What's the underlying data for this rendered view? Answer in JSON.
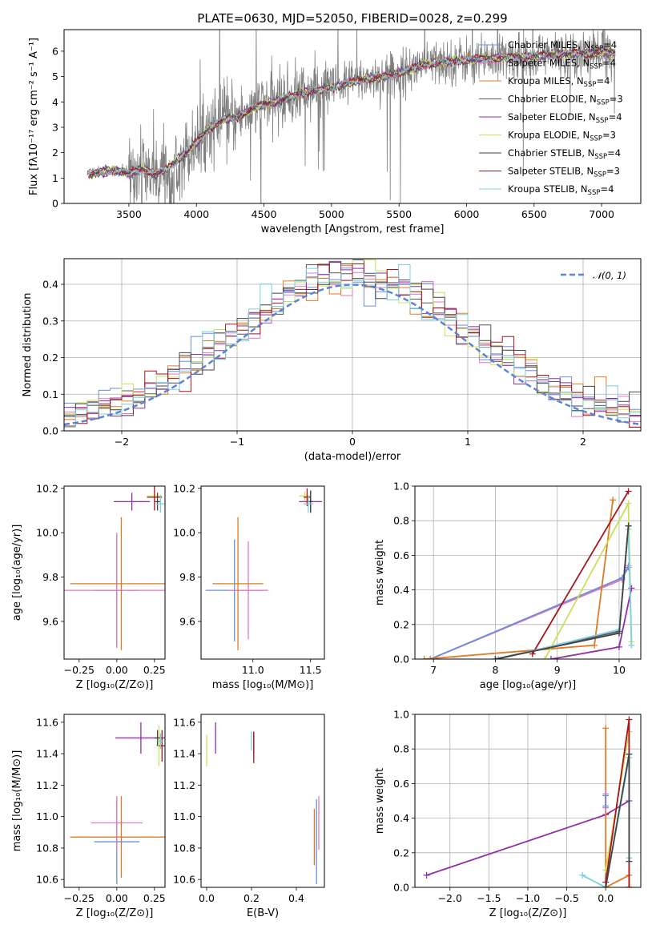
{
  "figure": {
    "title": "PLATE=0630, MJD=52050, FIBERID=0028, z=0.299"
  },
  "colors": {
    "data": "#808080",
    "Chabrier MILES": "#6b8fdc",
    "Salpeter MILES": "#e377c2",
    "Kroupa MILES": "#e07b24",
    "Chabrier ELODIE": "#555555",
    "Salpeter ELODIE": "#8f2ea8",
    "Kroupa ELODIE": "#c8e05a",
    "Chabrier STELIB": "#444444",
    "Salpeter STELIB": "#a8141c",
    "Kroupa STELIB": "#7ccfe0",
    "gauss": "#5b84d6"
  },
  "chart_data": [
    {
      "id": "spectrum",
      "type": "line",
      "title": "PLATE=0630, MJD=52050, FIBERID=0028, z=0.299",
      "xlabel": "wavelength [Angstrom, rest frame]",
      "ylabel": "Flux [fλ10⁻¹⁷ erg cm⁻² s⁻¹ A⁻¹]",
      "xlim": [
        3020,
        7290
      ],
      "ylim": [
        0,
        6.85
      ],
      "xticks": [
        3500,
        4000,
        4500,
        5000,
        5500,
        6000,
        6500,
        7000
      ],
      "yticks": [
        0,
        1,
        2,
        3,
        4,
        5,
        6
      ],
      "legend_position": "right",
      "legend": [
        {
          "name": "Chabrier MILES",
          "nssp": "4"
        },
        {
          "name": "Salpeter MILES",
          "nssp": "4"
        },
        {
          "name": "Kroupa MILES",
          "nssp": "4"
        },
        {
          "name": "Chabrier ELODIE",
          "nssp": "3"
        },
        {
          "name": "Salpeter ELODIE",
          "nssp": "4"
        },
        {
          "name": "Kroupa ELODIE",
          "nssp": "3"
        },
        {
          "name": "Chabrier STELIB",
          "nssp": "4"
        },
        {
          "name": "Salpeter STELIB",
          "nssp": "3"
        },
        {
          "name": "Kroupa STELIB",
          "nssp": "4"
        }
      ],
      "continuum": {
        "x": [
          3200,
          3300,
          3400,
          3500,
          3600,
          3700,
          3800,
          3900,
          4000,
          4100,
          4200,
          4300,
          4400,
          4500,
          4600,
          4700,
          4800,
          4900,
          5000,
          5100,
          5200,
          5300,
          5400,
          5500,
          5600,
          5700,
          5800,
          5900,
          6000,
          6100,
          6200,
          6300,
          6400,
          6500,
          6600,
          6700,
          6800,
          6900,
          7000,
          7100
        ],
        "y": [
          1.15,
          1.25,
          1.3,
          1.2,
          1.35,
          1.15,
          1.45,
          1.9,
          2.4,
          3.0,
          3.3,
          3.4,
          3.7,
          3.9,
          4.05,
          4.2,
          4.4,
          4.45,
          4.55,
          4.7,
          4.85,
          4.95,
          5.0,
          5.15,
          5.3,
          5.5,
          5.55,
          5.6,
          5.65,
          5.7,
          5.72,
          5.75,
          5.78,
          5.8,
          5.85,
          5.88,
          5.9,
          5.92,
          5.95,
          5.97
        ]
      }
    },
    {
      "id": "residuals",
      "type": "bar",
      "xlabel": "(data-model)/error",
      "ylabel": "Normed distribution",
      "xlim": [
        -2.5,
        2.5
      ],
      "ylim": [
        0,
        0.47
      ],
      "xticks": [
        -2,
        -1,
        0,
        1,
        2
      ],
      "yticks": [
        0.0,
        0.1,
        0.2,
        0.3,
        0.4
      ],
      "grid": true,
      "legend": [
        {
          "name": "𝒩(0, 1)"
        }
      ],
      "legend_position": "top-right",
      "bins": [
        -2.5,
        2.5,
        50
      ]
    },
    {
      "id": "age-Z",
      "type": "scatter",
      "xlabel": "Z [log₁₀(Z/Z⊙)]",
      "ylabel": "age  [log₁₀(age/yr)]",
      "xlim": [
        -0.35,
        0.32
      ],
      "ylim": [
        9.43,
        10.21
      ],
      "xticks": [
        -0.25,
        0.0,
        0.25
      ],
      "yticks": [
        9.6,
        9.8,
        10.0,
        10.2
      ],
      "points": [
        {
          "model": "Chabrier MILES",
          "x": 0.0,
          "y": 9.74,
          "xerr": 0.15,
          "yerr": 0.25
        },
        {
          "model": "Salpeter MILES",
          "x": 0.0,
          "y": 9.74,
          "xerr": 0.36,
          "yerr": 0.26
        },
        {
          "model": "Kroupa MILES",
          "x": 0.03,
          "y": 9.77,
          "xerr": 0.34,
          "yerr": 0.3
        },
        {
          "model": "Salpeter ELODIE",
          "x": 0.1,
          "y": 10.14,
          "xerr": 0.12,
          "yerr": 0.04
        },
        {
          "model": "Kroupa ELODIE",
          "x": 0.25,
          "y": 10.165,
          "xerr": 0.05,
          "yerr": 0.02
        },
        {
          "model": "Chabrier STELIB",
          "x": 0.27,
          "y": 10.14,
          "xerr": 0.02,
          "yerr": 0.04
        },
        {
          "model": "Salpeter STELIB",
          "x": 0.25,
          "y": 10.16,
          "xerr": 0.05,
          "yerr": 0.06
        },
        {
          "model": "Kroupa STELIB",
          "x": 0.29,
          "y": 10.13,
          "xerr": 0.03,
          "yerr": 0.04
        }
      ]
    },
    {
      "id": "age-mass",
      "type": "scatter",
      "xlabel": "mass [log₁₀(M/M⊙)]",
      "ylabel": "",
      "xlim": [
        10.55,
        11.62
      ],
      "ylim": [
        9.43,
        10.21
      ],
      "xticks": [
        11.0,
        11.5
      ],
      "yticks": [
        9.6,
        9.8,
        10.0,
        10.2
      ],
      "points": [
        {
          "model": "Chabrier MILES",
          "x": 10.84,
          "y": 9.74,
          "xerr": 0.25,
          "yerr": 0.23
        },
        {
          "model": "Salpeter MILES",
          "x": 10.96,
          "y": 9.74,
          "xerr": 0.17,
          "yerr": 0.22
        },
        {
          "model": "Kroupa MILES",
          "x": 10.87,
          "y": 9.77,
          "xerr": 0.22,
          "yerr": 0.3
        },
        {
          "model": "Salpeter ELODIE",
          "x": 11.5,
          "y": 10.14,
          "xerr": 0.1,
          "yerr": 0.05
        },
        {
          "model": "Kroupa ELODIE",
          "x": 11.45,
          "y": 10.165,
          "xerr": 0.05,
          "yerr": 0.02
        },
        {
          "model": "Chabrier STELIB",
          "x": 11.5,
          "y": 10.14,
          "xerr": 0.02,
          "yerr": 0.05
        },
        {
          "model": "Salpeter STELIB",
          "x": 11.47,
          "y": 10.16,
          "xerr": 0.03,
          "yerr": 0.04
        },
        {
          "model": "Kroupa STELIB",
          "x": 11.48,
          "y": 10.13,
          "xerr": 0.04,
          "yerr": 0.04
        }
      ]
    },
    {
      "id": "weight-age",
      "type": "line",
      "xlabel": "age  [log₁₀(age/yr)]",
      "ylabel": "mass weight",
      "xlim": [
        6.7,
        10.35
      ],
      "ylim": [
        0,
        1
      ],
      "xticks": [
        7,
        8,
        9,
        10
      ],
      "yticks": [
        0.0,
        0.2,
        0.4,
        0.6,
        0.8,
        1.0
      ],
      "grid": true,
      "series": [
        {
          "model": "Salpeter MILES",
          "x": [
            6.95,
            10.05,
            10.15
          ],
          "y": [
            0.0,
            0.46,
            0.54
          ]
        },
        {
          "model": "Chabrier MILES",
          "x": [
            6.95,
            10.05,
            10.15
          ],
          "y": [
            0.0,
            0.47,
            0.53
          ]
        },
        {
          "model": "Kroupa MILES",
          "x": [
            6.85,
            9.6,
            9.9
          ],
          "y": [
            0.0,
            0.08,
            0.92
          ]
        },
        {
          "model": "Salpeter STELIB",
          "x": [
            8.6,
            10.15
          ],
          "y": [
            0.03,
            0.97
          ]
        },
        {
          "model": "Kroupa ELODIE",
          "x": [
            8.8,
            10.15,
            10.2
          ],
          "y": [
            0.0,
            0.9,
            0.1
          ]
        },
        {
          "model": "Salpeter ELODIE",
          "x": [
            8.9,
            10.0,
            10.2
          ],
          "y": [
            0.0,
            0.07,
            0.41
          ]
        },
        {
          "model": "Chabrier ELODIE",
          "x": [
            8.0,
            10.0,
            10.15
          ],
          "y": [
            0.0,
            0.16,
            0.77
          ]
        },
        {
          "model": "Kroupa STELIB",
          "x": [
            8.05,
            10.0,
            10.15,
            10.2
          ],
          "y": [
            0.0,
            0.17,
            0.75,
            0.08
          ]
        },
        {
          "model": "Chabrier STELIB",
          "x": [
            8.0,
            10.0,
            10.15
          ],
          "y": [
            0.0,
            0.15,
            0.77
          ]
        }
      ]
    },
    {
      "id": "mass-Z",
      "type": "scatter",
      "xlabel": "Z [log₁₀(Z/Z⊙)]",
      "ylabel": "mass [log₁₀(M/M⊙)]",
      "xlim": [
        -0.35,
        0.32
      ],
      "ylim": [
        10.55,
        11.65
      ],
      "xticks": [
        -0.25,
        0.0,
        0.25
      ],
      "yticks": [
        10.6,
        10.8,
        11.0,
        11.2,
        11.4,
        11.6
      ],
      "points": [
        {
          "model": "Chabrier MILES",
          "x": 0.0,
          "y": 10.84,
          "xerr": 0.15,
          "yerr": 0.27
        },
        {
          "model": "Salpeter MILES",
          "x": 0.0,
          "y": 10.96,
          "xerr": 0.17,
          "yerr": 0.17
        },
        {
          "model": "Kroupa MILES",
          "x": 0.03,
          "y": 10.87,
          "xerr": 0.34,
          "yerr": 0.26
        },
        {
          "model": "Salpeter ELODIE",
          "x": 0.16,
          "y": 11.5,
          "xerr": 0.17,
          "yerr": 0.1
        },
        {
          "model": "Kroupa ELODIE",
          "x": 0.28,
          "y": 11.45,
          "xerr": 0.02,
          "yerr": 0.13
        },
        {
          "model": "Chabrier STELIB",
          "x": 0.27,
          "y": 11.5,
          "xerr": 0.02,
          "yerr": 0.05
        },
        {
          "model": "Salpeter STELIB",
          "x": 0.3,
          "y": 11.45,
          "xerr": 0.02,
          "yerr": 0.1
        },
        {
          "model": "Kroupa STELIB",
          "x": 0.29,
          "y": 11.48,
          "xerr": 0.02,
          "yerr": 0.05
        }
      ]
    },
    {
      "id": "mass-EBV",
      "type": "scatter",
      "xlabel": "E(B-V)",
      "ylabel": "",
      "xlim": [
        -0.025,
        0.525
      ],
      "ylim": [
        10.55,
        11.65
      ],
      "xticks": [
        0.0,
        0.2,
        0.4
      ],
      "yticks": [
        10.6,
        10.8,
        11.0,
        11.2,
        11.4,
        11.6
      ],
      "points": [
        {
          "model": "Chabrier MILES",
          "x": 0.49,
          "y": 10.84,
          "xerr": 0,
          "yerr": 0.27
        },
        {
          "model": "Salpeter MILES",
          "x": 0.5,
          "y": 10.96,
          "xerr": 0,
          "yerr": 0.17
        },
        {
          "model": "Kroupa MILES",
          "x": 0.48,
          "y": 10.87,
          "xerr": 0,
          "yerr": 0.18
        },
        {
          "model": "Salpeter ELODIE",
          "x": 0.04,
          "y": 11.5,
          "xerr": 0,
          "yerr": 0.1
        },
        {
          "model": "Kroupa ELODIE",
          "x": 0.0,
          "y": 11.42,
          "xerr": 0,
          "yerr": 0.1
        },
        {
          "model": "Chabrier STELIB",
          "x": 0.21,
          "y": 11.47,
          "xerr": 0,
          "yerr": 0.07
        },
        {
          "model": "Salpeter STELIB",
          "x": 0.21,
          "y": 11.44,
          "xerr": 0,
          "yerr": 0.1
        },
        {
          "model": "Kroupa STELIB",
          "x": 0.2,
          "y": 11.48,
          "xerr": 0,
          "yerr": 0.06
        }
      ]
    },
    {
      "id": "weight-Z",
      "type": "line",
      "xlabel": "Z [log₁₀(Z/Z⊙)]",
      "ylabel": "mass weight",
      "xlim": [
        -2.45,
        0.45
      ],
      "ylim": [
        0,
        1
      ],
      "xticks": [
        -2.0,
        -1.5,
        -1.0,
        -0.5,
        0.0
      ],
      "yticks": [
        0.0,
        0.2,
        0.4,
        0.6,
        0.8,
        1.0
      ],
      "grid": true,
      "series": [
        {
          "model": "Salpeter ELODIE",
          "x": [
            -2.3,
            0.0,
            0.3
          ],
          "y": [
            0.07,
            0.42,
            0.5
          ]
        },
        {
          "model": "Kroupa MILES",
          "x": [
            0.0,
            0.0,
            0.3,
            0.3
          ],
          "y": [
            0.92,
            0.0,
            0.07,
            0.0
          ]
        },
        {
          "model": "Kroupa ELODIE",
          "x": [
            0.0,
            0.3,
            0.3
          ],
          "y": [
            0.1,
            0.9,
            0.0
          ]
        },
        {
          "model": "Salpeter STELIB",
          "x": [
            0.0,
            0.3,
            0.3
          ],
          "y": [
            0.03,
            0.97,
            0.0
          ]
        },
        {
          "model": "Kroupa STELIB",
          "x": [
            -0.3,
            0.0,
            0.3,
            0.3
          ],
          "y": [
            0.07,
            0.0,
            0.75,
            0.17
          ]
        },
        {
          "model": "Chabrier STELIB",
          "x": [
            0.0,
            0.3,
            0.3
          ],
          "y": [
            0.0,
            0.77,
            0.15
          ]
        },
        {
          "model": "Salpeter MILES",
          "x": [
            0.0,
            0.0
          ],
          "y": [
            0.54,
            0.46
          ]
        },
        {
          "model": "Chabrier MILES",
          "x": [
            0.0,
            0.0
          ],
          "y": [
            0.53,
            0.47
          ]
        }
      ]
    }
  ]
}
